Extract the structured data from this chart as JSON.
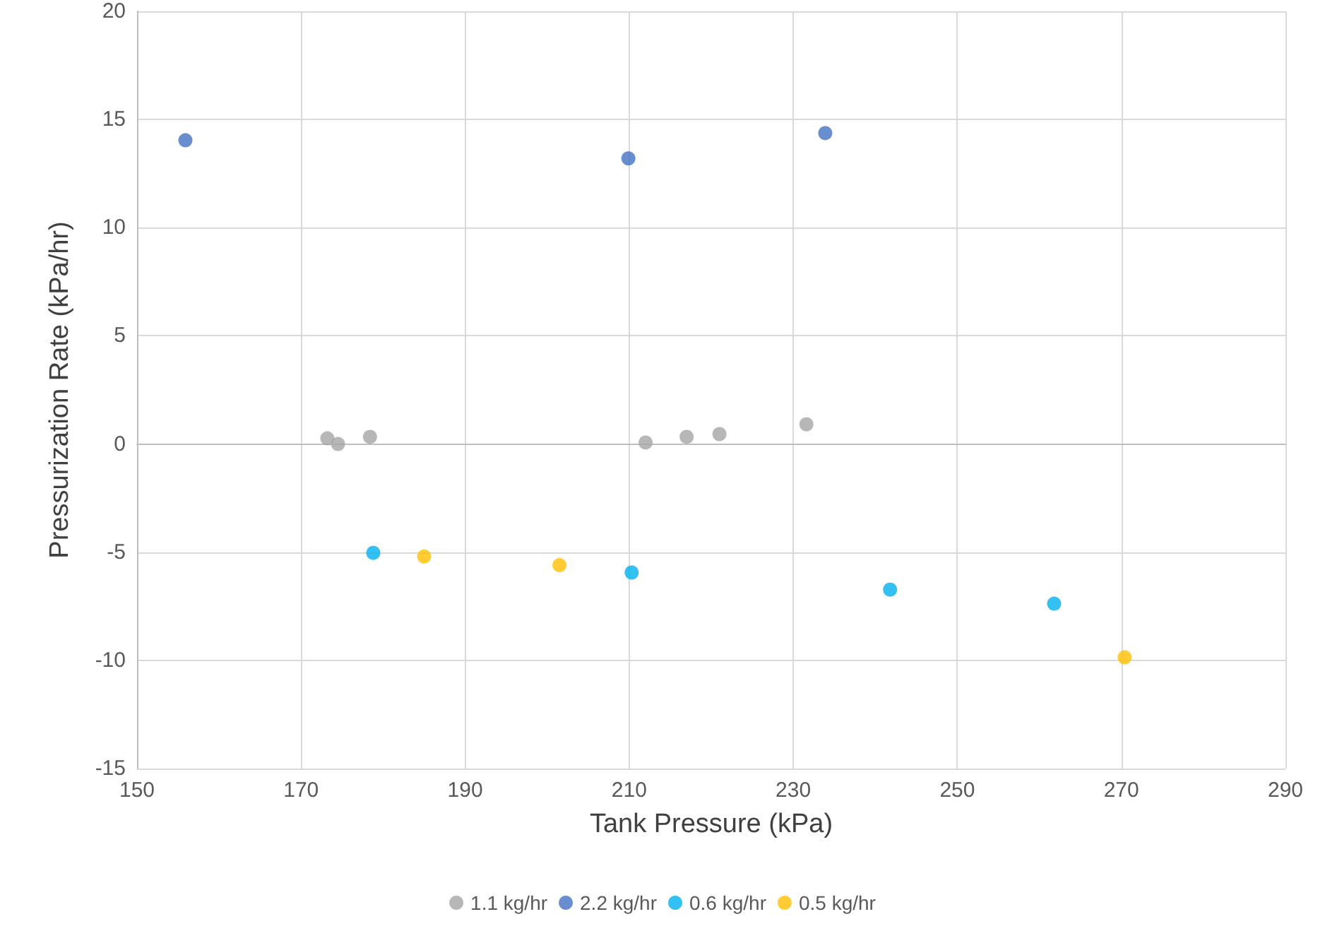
{
  "chart_data": {
    "type": "scatter",
    "xlabel": "Tank Pressure (kPa)",
    "ylabel": "Pressurization Rate (kPa/hr)",
    "xlim": [
      150,
      290
    ],
    "xticks": [
      150,
      170,
      190,
      210,
      230,
      250,
      270,
      290
    ],
    "ylim": [
      -15,
      20
    ],
    "yticks": [
      -15,
      -10,
      -5,
      0,
      5,
      10,
      15,
      20
    ],
    "grid": true,
    "legend": "bottom",
    "marker": "circle",
    "series": [
      {
        "name": "1.1 kg/hr",
        "color": "#a5a5a5",
        "x": [
          173.2,
          174.5,
          178.4,
          212,
          217,
          221,
          231.6
        ],
        "values": [
          0.26,
          0.0,
          0.33,
          0.07,
          0.33,
          0.46,
          0.91
        ]
      },
      {
        "name": "2.2 kg/hr",
        "color": "#4472c4",
        "x": [
          155.9,
          209.9,
          233.9
        ],
        "values": [
          14.04,
          13.2,
          14.37
        ]
      },
      {
        "name": "0.6 kg/hr",
        "color": "#00b0f0",
        "x": [
          178.8,
          210.3,
          241.8,
          261.8
        ],
        "values": [
          -5.03,
          -5.94,
          -6.73,
          -7.38
        ]
      },
      {
        "name": "0.5 kg/hr",
        "color": "#ffc000",
        "x": [
          185,
          201.5,
          270.4
        ],
        "values": [
          -5.2,
          -5.6,
          -9.86
        ]
      }
    ]
  }
}
